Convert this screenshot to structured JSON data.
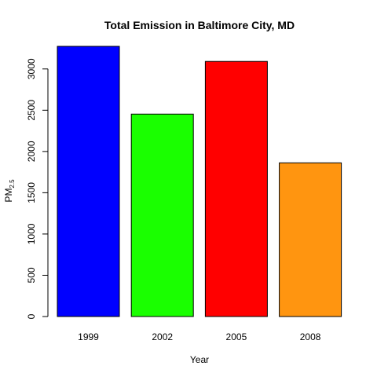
{
  "chart_data": {
    "type": "bar",
    "title": "Total Emission in Baltimore City, MD",
    "xlabel": "Year",
    "ylabel": "PM",
    "ylabel_subscript": "2.5",
    "categories": [
      "1999",
      "2002",
      "2005",
      "2008"
    ],
    "values": [
      3274,
      2453,
      3091,
      1862
    ],
    "colors": [
      "#0000ff",
      "#1aff00",
      "#ff0000",
      "#ff9510"
    ],
    "ylim": [
      0,
      3274
    ],
    "yticks": [
      0,
      500,
      1000,
      1500,
      2000,
      2500,
      3000
    ],
    "grid": false,
    "legend": "none"
  }
}
